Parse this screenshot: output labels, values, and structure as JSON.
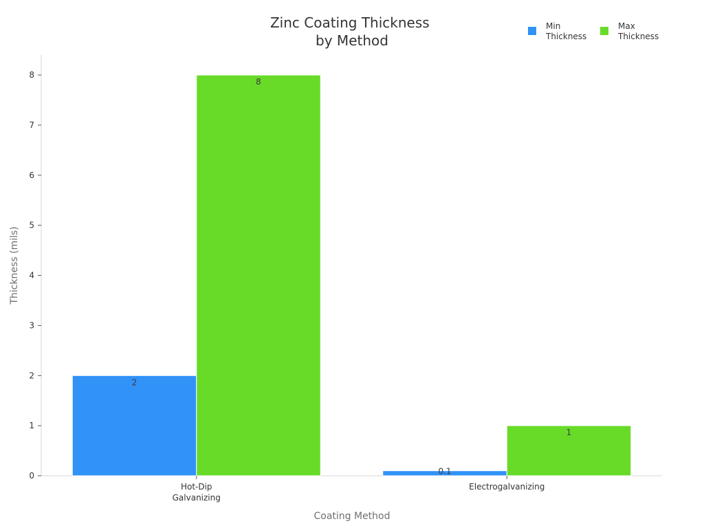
{
  "chart_data": {
    "type": "bar",
    "title": [
      "Zinc Coating Thickness",
      "by Method"
    ],
    "xlabel": "Coating Method",
    "ylabel": "Thickness (mils)",
    "categories": [
      [
        "Hot-Dip",
        "Galvanizing"
      ],
      [
        "Electrogalvanizing"
      ]
    ],
    "series": [
      {
        "name": [
          "Min",
          "Thickness"
        ],
        "color": "#3192f8",
        "values": [
          2,
          0.1
        ],
        "labels": [
          "2",
          "0.1"
        ]
      },
      {
        "name": [
          "Max",
          "Thickness"
        ],
        "color": "#68db29",
        "values": [
          8,
          1
        ],
        "labels": [
          "8",
          "1"
        ]
      }
    ],
    "ylim": [
      0,
      8.4
    ],
    "yticks": [
      0,
      1,
      2,
      3,
      4,
      5,
      6,
      7,
      8
    ],
    "grid": false,
    "legend_position": "top-right"
  }
}
